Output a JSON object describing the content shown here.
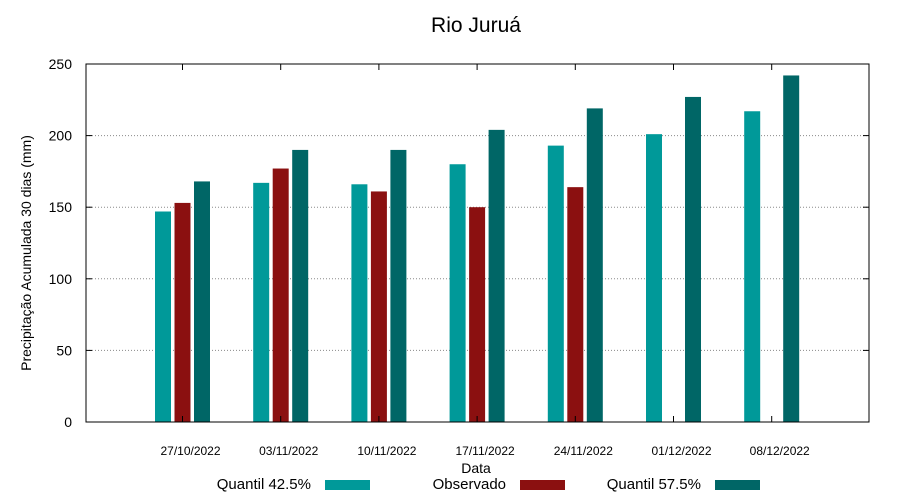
{
  "chart_data": {
    "type": "bar",
    "title": "Rio Juruá",
    "xlabel": "Data",
    "ylabel": "Precipitação Acumulada 30 dias (mm)",
    "ylim": [
      0,
      250
    ],
    "yticks": [
      0,
      50,
      100,
      150,
      200,
      250
    ],
    "grid": true,
    "legend_position": "bottom",
    "categories": [
      "27/10/2022",
      "03/11/2022",
      "10/11/2022",
      "17/11/2022",
      "24/11/2022",
      "01/12/2022",
      "08/12/2022"
    ],
    "series": [
      {
        "name": "Quantil 42.5%",
        "color": "#009999",
        "values": [
          147,
          167,
          166,
          180,
          193,
          201,
          217
        ]
      },
      {
        "name": "Observado",
        "color": "#8b1010",
        "values": [
          153,
          177,
          161,
          150,
          164,
          null,
          null
        ]
      },
      {
        "name": "Quantil 57.5%",
        "color": "#006666",
        "values": [
          168,
          190,
          190,
          204,
          219,
          227,
          242
        ]
      }
    ]
  }
}
